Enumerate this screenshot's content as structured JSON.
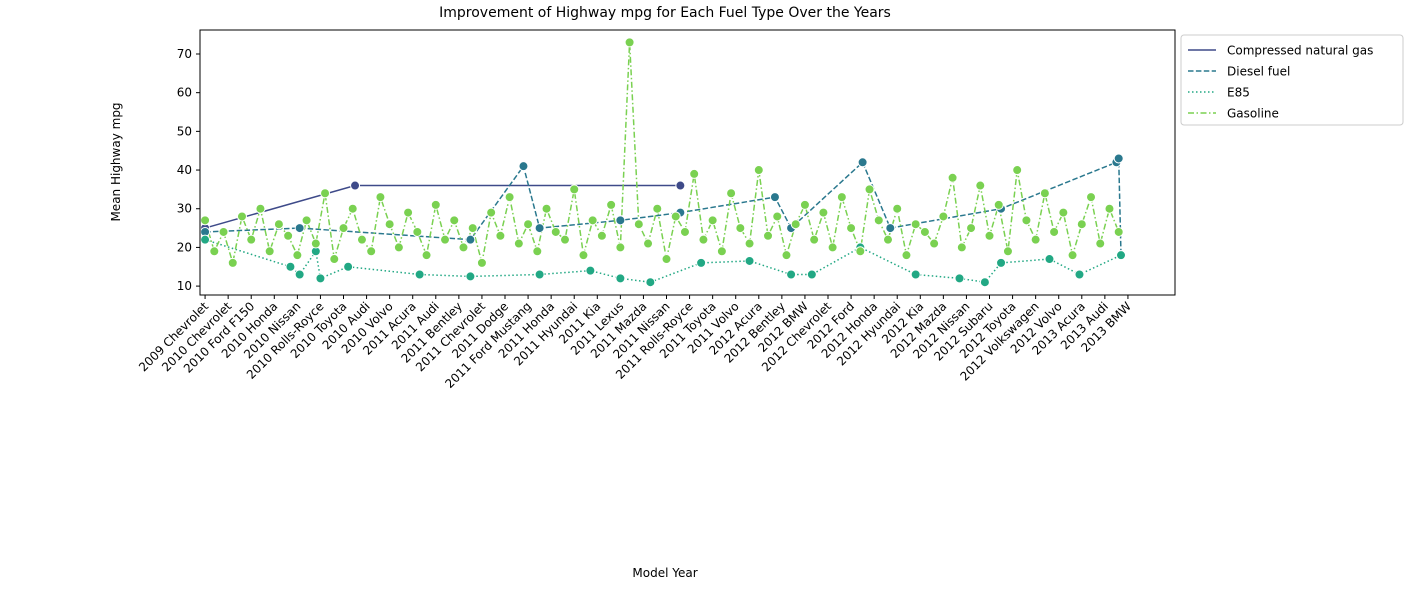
{
  "chart_data": {
    "type": "line",
    "title": "Improvement of Highway mpg for Each Fuel Type Over the Years",
    "xlabel": "Model Year",
    "ylabel": "Mean Highway mpg",
    "xlim": [
      -2.2,
      420.4
    ],
    "ylim": [
      7.7,
      76.2
    ],
    "yticks": [
      10,
      20,
      30,
      40,
      50,
      60,
      70
    ],
    "xticks": [
      {
        "value": 0,
        "label": "2009 Chevrolet"
      },
      {
        "value": 10,
        "label": "2010 Chevrolet"
      },
      {
        "value": 20,
        "label": "2010 Ford F150"
      },
      {
        "value": 30,
        "label": "2010 Honda"
      },
      {
        "value": 40,
        "label": "2010 Nissan"
      },
      {
        "value": 50,
        "label": "2010 Rolls-Royce"
      },
      {
        "value": 60,
        "label": "2010 Toyota"
      },
      {
        "value": 70,
        "label": "2010 Audi"
      },
      {
        "value": 80,
        "label": "2010 Volvo"
      },
      {
        "value": 90,
        "label": "2011 Acura"
      },
      {
        "value": 100,
        "label": "2011 Audi"
      },
      {
        "value": 110,
        "label": "2011 Bentley"
      },
      {
        "value": 120,
        "label": "2011 Chevrolet"
      },
      {
        "value": 130,
        "label": "2011 Dodge"
      },
      {
        "value": 140,
        "label": "2011 Ford Mustang"
      },
      {
        "value": 150,
        "label": "2011 Honda"
      },
      {
        "value": 160,
        "label": "2011 Hyundai"
      },
      {
        "value": 170,
        "label": "2011 Kia"
      },
      {
        "value": 180,
        "label": "2011 Lexus"
      },
      {
        "value": 190,
        "label": "2011 Mazda"
      },
      {
        "value": 200,
        "label": "2011 Nissan"
      },
      {
        "value": 210,
        "label": "2011 Rolls-Royce"
      },
      {
        "value": 220,
        "label": "2011 Toyota"
      },
      {
        "value": 230,
        "label": "2011 Volvo"
      },
      {
        "value": 240,
        "label": "2012 Acura"
      },
      {
        "value": 250,
        "label": "2012 Bentley"
      },
      {
        "value": 260,
        "label": "2012 BMW"
      },
      {
        "value": 270,
        "label": "2012 Chevrolet"
      },
      {
        "value": 280,
        "label": "2012 Ford"
      },
      {
        "value": 290,
        "label": "2012 Honda"
      },
      {
        "value": 300,
        "label": "2012 Hyundai"
      },
      {
        "value": 310,
        "label": "2012 Kia"
      },
      {
        "value": 320,
        "label": "2012 Mazda"
      },
      {
        "value": 330,
        "label": "2012 Nissan"
      },
      {
        "value": 340,
        "label": "2012 Subaru"
      },
      {
        "value": 350,
        "label": "2012 Toyota"
      },
      {
        "value": 360,
        "label": "2012 Volkswagen"
      },
      {
        "value": 370,
        "label": "2012 Volvo"
      },
      {
        "value": 380,
        "label": "2013 Acura"
      },
      {
        "value": 390,
        "label": "2013 Audi"
      },
      {
        "value": 400,
        "label": "2013 BMW"
      }
    ],
    "legend": "upper right outside",
    "series": [
      {
        "name": "Compressed natural gas",
        "color": "#3e4a89",
        "dash": "solid",
        "x": [
          0,
          65,
          206
        ],
        "values": [
          25,
          36,
          36
        ]
      },
      {
        "name": "Diesel fuel",
        "color": "#2a788e",
        "dash": "dashed",
        "x": [
          0,
          41,
          115,
          138,
          145,
          180,
          206,
          247,
          254,
          285,
          297,
          345,
          395,
          396,
          397
        ],
        "values": [
          24,
          25,
          22,
          41,
          25,
          27,
          29,
          33,
          25,
          42,
          25,
          30,
          42,
          43,
          18
        ]
      },
      {
        "name": "E85",
        "color": "#22a884",
        "dash": "dotted",
        "x": [
          0,
          37,
          41,
          48,
          50,
          62,
          93,
          115,
          145,
          167,
          180,
          193,
          215,
          236,
          254,
          263,
          284,
          308,
          327,
          338,
          345,
          366,
          379,
          397
        ],
        "values": [
          22,
          15,
          13,
          19,
          12,
          15,
          13,
          12.5,
          13,
          14,
          12,
          11,
          16,
          16.5,
          13,
          13,
          20,
          13,
          12,
          11,
          16,
          17,
          13,
          18
        ]
      },
      {
        "name": "Gasoline",
        "color": "#7ad151",
        "dash": "dashdot",
        "x": [
          0,
          4,
          8,
          12,
          16,
          20,
          24,
          28,
          32,
          36,
          40,
          44,
          48,
          52,
          56,
          60,
          64,
          68,
          72,
          76,
          80,
          84,
          88,
          92,
          96,
          100,
          104,
          108,
          112,
          116,
          120,
          124,
          128,
          132,
          136,
          140,
          144,
          148,
          152,
          156,
          160,
          164,
          168,
          172,
          176,
          180,
          184,
          188,
          192,
          196,
          200,
          204,
          208,
          212,
          216,
          220,
          224,
          228,
          232,
          236,
          240,
          244,
          248,
          252,
          256,
          260,
          264,
          268,
          272,
          276,
          280,
          284,
          288,
          292,
          296,
          300,
          304,
          308,
          312,
          316,
          320,
          324,
          328,
          332,
          336,
          340,
          344,
          348,
          352,
          356,
          360,
          364,
          368,
          372,
          376,
          380,
          384,
          388,
          392,
          396
        ],
        "values": [
          27,
          19,
          24,
          16,
          28,
          22,
          30,
          19,
          26,
          23,
          18,
          27,
          21,
          34,
          17,
          25,
          30,
          22,
          19,
          33,
          26,
          20,
          29,
          24,
          18,
          31,
          22,
          27,
          20,
          25,
          16,
          29,
          23,
          33,
          21,
          26,
          19,
          30,
          24,
          22,
          35,
          18,
          27,
          23,
          31,
          20,
          73,
          26,
          21,
          30,
          17,
          28,
          24,
          39,
          22,
          27,
          19,
          34,
          25,
          21,
          40,
          23,
          28,
          18,
          26,
          31,
          22,
          29,
          20,
          33,
          25,
          19,
          35,
          27,
          22,
          30,
          18,
          26,
          24,
          21,
          28,
          38,
          20,
          25,
          36,
          23,
          31,
          19,
          40,
          27,
          22,
          34,
          24,
          29,
          18,
          26,
          33,
          21,
          30,
          24
        ]
      }
    ]
  }
}
